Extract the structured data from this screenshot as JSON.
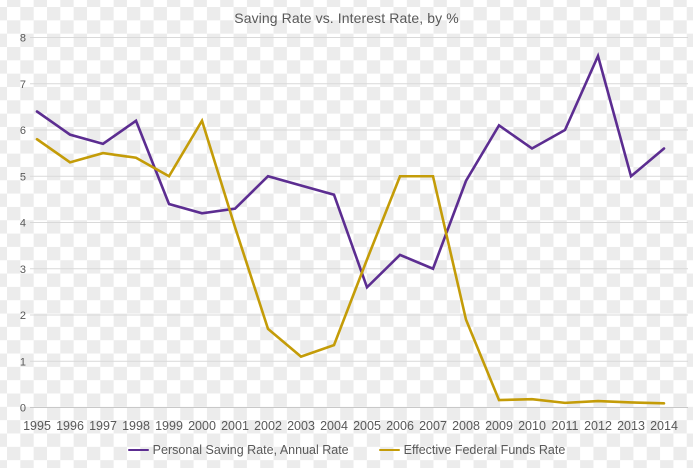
{
  "chart_data": {
    "type": "line",
    "title": "Saving Rate vs. Interest Rate, by %",
    "categories": [
      "1995",
      "1996",
      "1997",
      "1998",
      "1999",
      "2000",
      "2001",
      "2002",
      "2003",
      "2004",
      "2005",
      "2006",
      "2007",
      "2008",
      "2009",
      "2010",
      "2011",
      "2012",
      "2013",
      "2014"
    ],
    "series": [
      {
        "name": "Personal Saving Rate, Annual Rate",
        "color": "#5C2D91",
        "values": [
          6.4,
          5.9,
          5.7,
          6.2,
          4.4,
          4.2,
          4.3,
          5.0,
          4.8,
          4.6,
          2.6,
          3.3,
          3.0,
          4.9,
          6.1,
          5.6,
          6.0,
          7.6,
          5.0,
          5.6
        ]
      },
      {
        "name": "Effective Federal Funds Rate",
        "color": "#C49C08",
        "values": [
          5.8,
          5.3,
          5.5,
          5.4,
          5.0,
          6.2,
          3.9,
          1.7,
          1.1,
          1.35,
          3.2,
          5.0,
          5.0,
          1.9,
          0.16,
          0.18,
          0.1,
          0.14,
          0.11,
          0.09
        ]
      }
    ],
    "xlabel": "",
    "ylabel": "",
    "ylim": [
      0,
      8
    ],
    "yticks": [
      "0",
      "1",
      "2",
      "3",
      "4",
      "5",
      "6",
      "7",
      "8"
    ],
    "grid": true,
    "legend_position": "bottom"
  },
  "colors": {
    "text": "#595959",
    "gridline": "#d9d9d9",
    "axis_line": "#c8c8c8",
    "checker_light": "#ffffff",
    "checker_dark": "#ececec"
  }
}
